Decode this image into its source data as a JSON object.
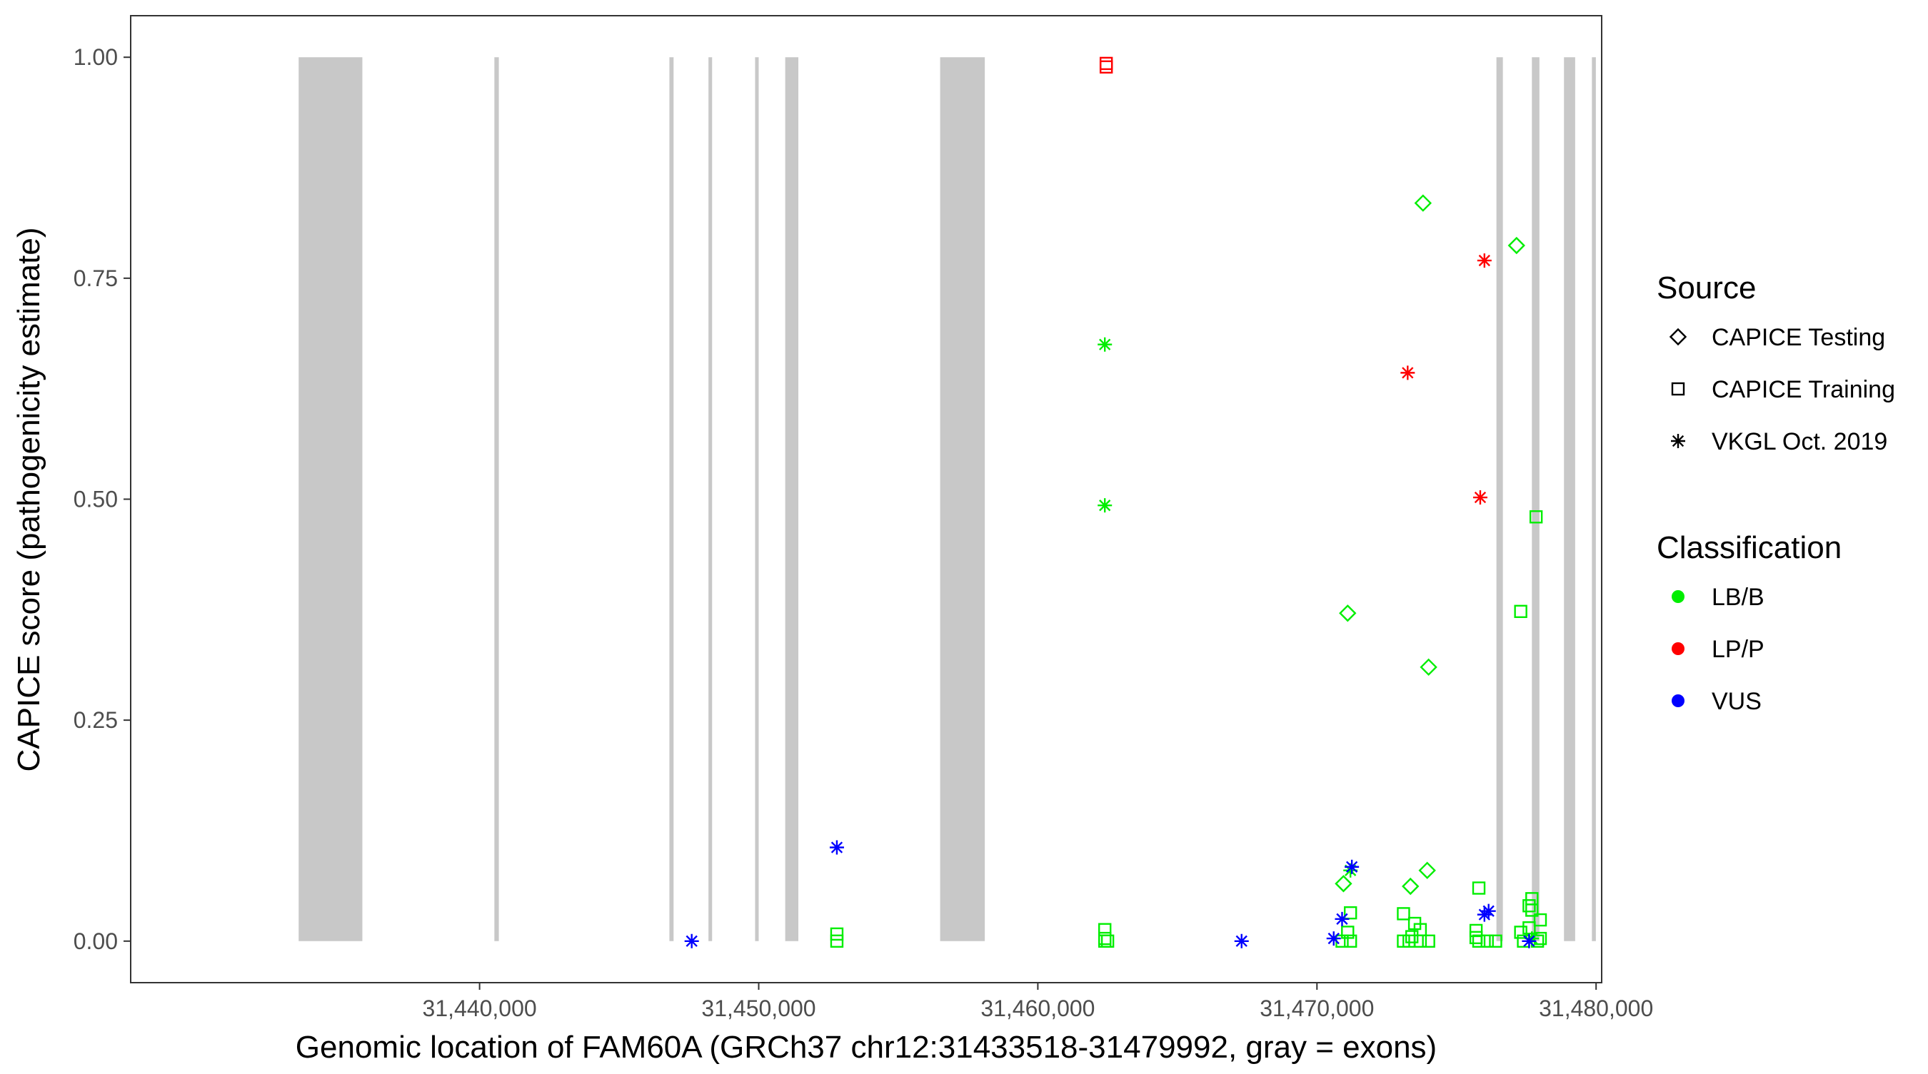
{
  "chart_data": {
    "type": "scatter",
    "title": "",
    "xlabel": "Genomic location of FAM60A (GRCh37 chr12:31433518-31479992, gray = exons)",
    "ylabel": "CAPICE score (pathogenicity estimate)",
    "xlim": [
      31427500,
      31480200
    ],
    "ylim": [
      -0.047,
      1.047
    ],
    "x_ticks": [
      31440000,
      31450000,
      31460000,
      31470000,
      31480000
    ],
    "x_tick_labels": [
      "31,440,000",
      "31,450,000",
      "31,460,000",
      "31,470,000",
      "31,480,000"
    ],
    "y_ticks": [
      0,
      0.25,
      0.5,
      0.75,
      1.0
    ],
    "y_tick_labels": [
      "0.00",
      "0.25",
      "0.50",
      "0.75",
      "1.00"
    ],
    "grid": false,
    "legend_position": "right",
    "exon_color": "#c8c8c8",
    "exons": [
      [
        31433518,
        31435800
      ],
      [
        31440530,
        31440690
      ],
      [
        31446800,
        31446950
      ],
      [
        31448200,
        31448330
      ],
      [
        31449870,
        31450000
      ],
      [
        31450950,
        31451420
      ],
      [
        31456500,
        31458100
      ],
      [
        31476430,
        31476660
      ],
      [
        31477700,
        31477970
      ],
      [
        31478850,
        31479250
      ],
      [
        31479850,
        31479992
      ]
    ],
    "legend": {
      "source_title": "Source",
      "source_entries": [
        {
          "label": "CAPICE Testing",
          "shape": "diamond"
        },
        {
          "label": "CAPICE Training",
          "shape": "square"
        },
        {
          "label": "VKGL Oct. 2019",
          "shape": "asterisk"
        }
      ],
      "class_title": "Classification",
      "class_entries": [
        {
          "label": "LB/B",
          "color": "#00ee00"
        },
        {
          "label": "LP/P",
          "color": "#ff0000"
        },
        {
          "label": "VUS",
          "color": "#0000ff"
        }
      ]
    },
    "series": [
      {
        "name": "CAPICE Testing",
        "class": "LB/B",
        "shape": "diamond",
        "color": "#00ee00",
        "points": [
          [
            31473800,
            0.835
          ],
          [
            31477150,
            0.787
          ],
          [
            31471100,
            0.371
          ],
          [
            31474000,
            0.31
          ],
          [
            31473950,
            0.08
          ],
          [
            31473350,
            0.062
          ],
          [
            31470950,
            0.065
          ]
        ]
      },
      {
        "name": "CAPICE Training",
        "class": "LB/B",
        "shape": "square",
        "color": "#00ee00",
        "points": [
          [
            31477850,
            0.48
          ],
          [
            31477300,
            0.373
          ],
          [
            31475800,
            0.06
          ],
          [
            31452800,
            0.008
          ],
          [
            31452800,
            0.0
          ],
          [
            31462400,
            0.013
          ],
          [
            31462400,
            0.003
          ],
          [
            31462400,
            0.0
          ],
          [
            31462500,
            0.0
          ],
          [
            31471200,
            0.032
          ],
          [
            31471100,
            0.01
          ],
          [
            31470900,
            0.0
          ],
          [
            31471200,
            0.0
          ],
          [
            31473100,
            0.031
          ],
          [
            31473100,
            0.0
          ],
          [
            31473500,
            0.02
          ],
          [
            31473700,
            0.013
          ],
          [
            31473400,
            0.005
          ],
          [
            31473700,
            0.0
          ],
          [
            31473300,
            0.0
          ],
          [
            31474000,
            0.0
          ],
          [
            31475700,
            0.012
          ],
          [
            31475700,
            0.004
          ],
          [
            31475800,
            0.0
          ],
          [
            31476100,
            0.0
          ],
          [
            31476400,
            0.0
          ],
          [
            31477700,
            0.048
          ],
          [
            31477600,
            0.04
          ],
          [
            31477700,
            0.035
          ],
          [
            31478000,
            0.024
          ],
          [
            31477600,
            0.015
          ],
          [
            31477300,
            0.01
          ],
          [
            31477400,
            0.0
          ],
          [
            31477900,
            0.0
          ],
          [
            31478000,
            0.003
          ]
        ]
      },
      {
        "name": "CAPICE Training",
        "class": "LP/P",
        "shape": "square",
        "color": "#ff0000",
        "points": [
          [
            31462450,
            0.993
          ],
          [
            31462450,
            0.989
          ]
        ]
      },
      {
        "name": "VKGL Oct. 2019",
        "class": "LB/B",
        "shape": "asterisk",
        "color": "#00ee00",
        "points": [
          [
            31462400,
            0.675
          ],
          [
            31462400,
            0.493
          ],
          [
            31471200,
            0.08
          ],
          [
            31477700,
            0.003
          ]
        ]
      },
      {
        "name": "VKGL Oct. 2019",
        "class": "LP/P",
        "shape": "asterisk",
        "color": "#ff0000",
        "points": [
          [
            31476000,
            0.77
          ],
          [
            31473250,
            0.643
          ],
          [
            31475850,
            0.502
          ]
        ]
      },
      {
        "name": "VKGL Oct. 2019",
        "class": "VUS",
        "shape": "asterisk",
        "color": "#0000ff",
        "points": [
          [
            31452800,
            0.106
          ],
          [
            31471250,
            0.084
          ],
          [
            31447600,
            0.0
          ],
          [
            31467300,
            0.0
          ],
          [
            31470600,
            0.003
          ],
          [
            31470900,
            0.025
          ],
          [
            31476150,
            0.034
          ],
          [
            31476000,
            0.03
          ],
          [
            31477600,
            0.0
          ]
        ]
      }
    ]
  }
}
